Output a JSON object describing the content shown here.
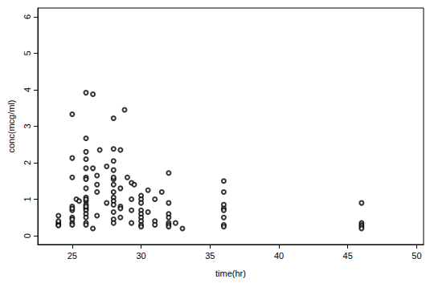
{
  "chart_data": {
    "type": "scatter",
    "x_label": "time(hr)",
    "y_label": "conc(mcg/ml)",
    "x": [
      24,
      24,
      24,
      24,
      24,
      25,
      25,
      25,
      25,
      25,
      25,
      25,
      25,
      25,
      25,
      25.3,
      25.5,
      26,
      26,
      26,
      26,
      26,
      26,
      26,
      26,
      26,
      26,
      26,
      26,
      26,
      26,
      26,
      26,
      26,
      26,
      26,
      26.5,
      26.5,
      26.5,
      26.8,
      26.8,
      26.8,
      26.8,
      27,
      27.5,
      27.5,
      28,
      28,
      28,
      28,
      28,
      28,
      28,
      28,
      28,
      28,
      28,
      28,
      28,
      28,
      28.5,
      28.5,
      28.5,
      28.5,
      28.5,
      28.8,
      29,
      29.3,
      29.3,
      29.3,
      29.3,
      29.5,
      30,
      30,
      30,
      30,
      30,
      30,
      30,
      30,
      30,
      30.5,
      30.5,
      31,
      31,
      31,
      31.5,
      32,
      32,
      32,
      32,
      32,
      32,
      32,
      32.5,
      33,
      36,
      36,
      36,
      36,
      36,
      36,
      36,
      36,
      46,
      46,
      46,
      46,
      46
    ],
    "values": [
      0.55,
      0.35,
      0.3,
      0.28,
      0.4,
      3.33,
      2.13,
      1.6,
      0.8,
      0.7,
      0.5,
      0.35,
      0.3,
      0.75,
      0.45,
      1.0,
      0.95,
      3.92,
      2.67,
      2.3,
      2.1,
      1.85,
      1.6,
      1.55,
      1.3,
      1.05,
      0.95,
      0.85,
      0.75,
      0.7,
      0.6,
      0.5,
      0.35,
      0.3,
      1.0,
      0.8,
      3.88,
      1.85,
      0.2,
      1.65,
      1.4,
      1.2,
      0.55,
      2.35,
      1.9,
      0.9,
      3.22,
      2.38,
      2.05,
      1.8,
      1.55,
      1.4,
      1.2,
      1.05,
      0.95,
      0.85,
      0.65,
      0.45,
      0.35,
      1.6,
      2.35,
      1.3,
      0.8,
      0.75,
      0.5,
      3.45,
      1.6,
      1.45,
      1.0,
      0.7,
      0.35,
      1.4,
      1.1,
      1.0,
      0.9,
      0.7,
      0.6,
      0.5,
      0.4,
      0.3,
      0.25,
      1.25,
      0.65,
      1.0,
      0.4,
      0.3,
      1.2,
      1.72,
      0.9,
      0.6,
      0.5,
      0.35,
      0.3,
      0.25,
      0.35,
      0.2,
      1.5,
      1.2,
      0.85,
      0.75,
      0.7,
      0.5,
      0.3,
      0.25,
      0.9,
      0.35,
      0.3,
      0.25,
      0.2
    ],
    "color": "#000000",
    "marker": "circle",
    "xlim": [
      22.5,
      50.5
    ],
    "xticks": [
      25,
      30,
      35,
      40,
      45,
      50
    ],
    "ylim": [
      -0.24,
      6.24
    ],
    "yticks": [
      0,
      1,
      2,
      3,
      4,
      5,
      6
    ],
    "grid": false
  }
}
